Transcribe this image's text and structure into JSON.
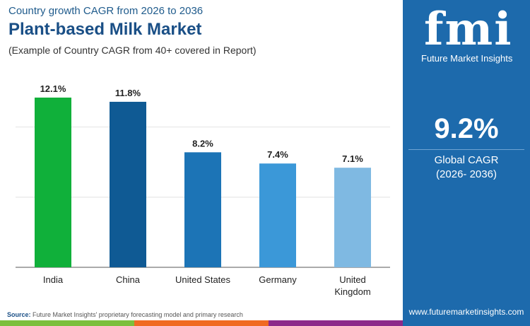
{
  "header": {
    "subtitle": "Country growth CAGR from 2026 to 2036",
    "title": "Plant-based Milk Market",
    "note": "(Example of Country CAGR from 40+ covered in Report)"
  },
  "panel": {
    "logo_text": "fmi",
    "logo_sub": "Future Market Insights",
    "global_cagr": "9.2%",
    "global_cagr_label": "Global CAGR",
    "global_cagr_period": "(2026- 2036)",
    "url": "www.futuremarketinsights.com",
    "bg": "#1d6aac"
  },
  "footer": {
    "source_label": "Source:",
    "source_text": "Future Market Insights' proprietary forecasting model and primary research",
    "strip_colors": [
      "#7cbf3c",
      "#f06a22",
      "#8d2a8a",
      "#1d6aac"
    ]
  },
  "chart_data": {
    "type": "bar",
    "categories": [
      "India",
      "China",
      "United States",
      "Germany",
      "United Kingdom"
    ],
    "values": [
      12.1,
      11.8,
      8.2,
      7.4,
      7.1
    ],
    "labels": [
      "12.1%",
      "11.8%",
      "8.2%",
      "7.4%",
      "7.1%"
    ],
    "colors": [
      "#10b03a",
      "#0f5a94",
      "#1c74b6",
      "#3b98d8",
      "#7fb9e2"
    ],
    "ylim": [
      0,
      12.1
    ],
    "gridlines": [
      5,
      10
    ],
    "grid": true,
    "title": "",
    "xlabel": "",
    "ylabel": ""
  }
}
